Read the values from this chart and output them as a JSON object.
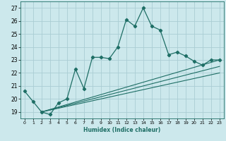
{
  "xlabel": "Humidex (Indice chaleur)",
  "ylabel": "",
  "background_color": "#cce8ec",
  "grid_color": "#aacdd4",
  "line_color": "#1e6e65",
  "xlim": [
    -0.5,
    23.5
  ],
  "ylim": [
    18.5,
    27.5
  ],
  "yticks": [
    19,
    20,
    21,
    22,
    23,
    24,
    25,
    26,
    27
  ],
  "xticks": [
    0,
    1,
    2,
    3,
    4,
    5,
    6,
    7,
    8,
    9,
    10,
    11,
    12,
    13,
    14,
    15,
    16,
    17,
    18,
    19,
    20,
    21,
    22,
    23
  ],
  "main_x": [
    0,
    1,
    2,
    3,
    4,
    5,
    6,
    7,
    8,
    9,
    10,
    11,
    12,
    13,
    14,
    15,
    16,
    17,
    18,
    19,
    20,
    21,
    22,
    23
  ],
  "main_y": [
    20.6,
    19.8,
    19.0,
    18.8,
    19.7,
    20.0,
    22.3,
    20.8,
    23.2,
    23.2,
    23.1,
    24.0,
    26.1,
    25.6,
    27.0,
    25.6,
    25.3,
    23.4,
    23.6,
    23.3,
    22.9,
    22.6,
    23.0,
    23.0
  ],
  "line2_x": [
    2,
    23
  ],
  "line2_y": [
    19.0,
    23.0
  ],
  "line3_x": [
    2,
    23
  ],
  "line3_y": [
    19.0,
    22.5
  ],
  "line4_x": [
    2,
    23
  ],
  "line4_y": [
    19.0,
    22.0
  ]
}
